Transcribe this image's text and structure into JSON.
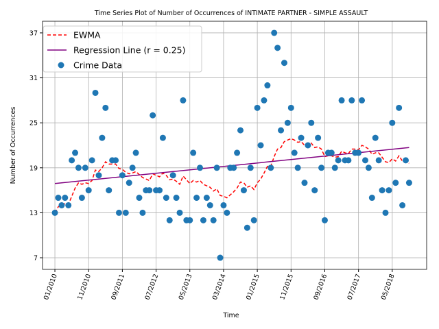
{
  "chart_data": {
    "type": "line",
    "title": "Time Series Plot of Number of Occurrences of INTIMATE PARTNER - SIMPLE ASSAULT",
    "xlabel": "Time",
    "ylabel": "Number of Occurrences",
    "x": [
      "2010-01",
      "2010-02",
      "2010-03",
      "2010-04",
      "2010-05",
      "2010-06",
      "2010-07",
      "2010-08",
      "2010-09",
      "2010-10",
      "2010-11",
      "2010-12",
      "2011-01",
      "2011-02",
      "2011-03",
      "2011-04",
      "2011-05",
      "2011-06",
      "2011-07",
      "2011-08",
      "2011-09",
      "2011-10",
      "2011-11",
      "2011-12",
      "2012-01",
      "2012-02",
      "2012-03",
      "2012-04",
      "2012-05",
      "2012-06",
      "2012-07",
      "2012-08",
      "2012-09",
      "2012-10",
      "2012-11",
      "2012-12",
      "2013-01",
      "2013-02",
      "2013-03",
      "2013-04",
      "2013-05",
      "2013-06",
      "2013-07",
      "2013-08",
      "2013-09",
      "2013-10",
      "2013-11",
      "2013-12",
      "2014-01",
      "2014-02",
      "2014-03",
      "2014-04",
      "2014-05",
      "2014-06",
      "2014-07",
      "2014-08",
      "2014-09",
      "2014-10",
      "2014-11",
      "2014-12",
      "2015-01",
      "2015-02",
      "2015-03",
      "2015-04",
      "2015-05",
      "2015-06",
      "2015-07",
      "2015-08",
      "2015-09",
      "2015-10",
      "2015-11",
      "2015-12",
      "2016-01",
      "2016-02",
      "2016-03",
      "2016-04",
      "2016-05",
      "2016-06",
      "2016-07",
      "2016-08",
      "2016-09",
      "2016-10",
      "2016-11",
      "2016-12",
      "2017-01",
      "2017-02",
      "2017-03",
      "2017-04",
      "2017-05",
      "2017-06",
      "2017-07",
      "2017-08",
      "2017-09",
      "2017-10",
      "2017-11",
      "2017-12",
      "2018-01",
      "2018-02",
      "2018-03",
      "2018-04",
      "2018-05",
      "2018-06",
      "2018-07",
      "2018-08",
      "2018-09",
      "2018-10"
    ],
    "series": [
      {
        "name": "EWMA",
        "type": "line",
        "style": "dashed",
        "color": "#ff0000",
        "values": [
          13,
          13.8,
          14,
          14.2,
          14.1,
          15.2,
          16.3,
          17,
          16.8,
          17,
          16.9,
          17.3,
          18.7,
          18.5,
          19,
          19.8,
          19.5,
          19.5,
          19.5,
          18.9,
          18.8,
          18.4,
          18.2,
          18.3,
          18.5,
          18.1,
          17.7,
          17.5,
          17.3,
          18.2,
          18,
          17.8,
          18.3,
          18,
          17.4,
          17.5,
          17.2,
          16.8,
          17.9,
          17.4,
          16.9,
          17.3,
          17.1,
          17.3,
          16.8,
          16.6,
          16.4,
          15.9,
          16.2,
          15.3,
          15.2,
          15,
          15.4,
          15.8,
          16.3,
          17.1,
          17,
          16.4,
          16.6,
          16.1,
          17,
          17.5,
          18.3,
          19.2,
          19.2,
          20.5,
          21.5,
          21.7,
          22.5,
          22.7,
          22.9,
          22.7,
          22.4,
          22.5,
          22,
          22,
          22.3,
          21.7,
          21.8,
          21.5,
          20.5,
          20.6,
          20.6,
          20.4,
          20.5,
          21.2,
          21,
          20.9,
          21.5,
          21.5,
          21.4,
          22,
          21.8,
          21.5,
          20.8,
          21,
          21,
          20.4,
          19.8,
          19.7,
          20.2,
          19.9,
          20.6,
          19.9,
          19.9,
          19.6
        ]
      },
      {
        "name": "Regression Line (r = 0.25)",
        "type": "line",
        "style": "solid",
        "color": "#800080",
        "x": [
          "2010-01",
          "2018-10"
        ],
        "values": [
          16.9,
          21.7
        ]
      },
      {
        "name": "Crime Data",
        "type": "scatter",
        "color": "#1f77b4",
        "values": [
          13,
          15,
          14,
          15,
          14,
          20,
          21,
          19,
          15,
          19,
          16,
          20,
          29,
          18,
          23,
          27,
          16,
          20,
          20,
          13,
          18,
          13,
          17,
          19,
          21,
          15,
          13,
          16,
          16,
          26,
          16,
          16,
          23,
          15,
          12,
          18,
          15,
          13,
          28,
          12,
          12,
          21,
          15,
          19,
          12,
          15,
          14,
          12,
          19,
          7,
          14,
          13,
          19,
          19,
          21,
          24,
          16,
          11,
          19,
          12,
          27,
          22,
          28,
          30,
          19,
          37,
          35,
          24,
          33,
          25,
          27,
          21,
          19,
          23,
          17,
          22,
          25,
          16,
          23,
          19,
          12,
          21,
          21,
          19,
          20,
          28,
          20,
          20,
          28,
          21,
          21,
          28,
          20,
          19,
          15,
          23,
          20,
          16,
          13,
          16,
          25,
          17,
          27,
          14,
          20,
          17
        ]
      }
    ],
    "xlim": [
      "2009-09-11",
      "2019-03-07"
    ],
    "xticks": [
      {
        "value": "2010-01",
        "label": "01/2010"
      },
      {
        "value": "2010-11",
        "label": "11/2010"
      },
      {
        "value": "2011-09",
        "label": "09/2011"
      },
      {
        "value": "2012-07",
        "label": "07/2012"
      },
      {
        "value": "2013-05",
        "label": "05/2013"
      },
      {
        "value": "2014-03",
        "label": "03/2014"
      },
      {
        "value": "2015-01",
        "label": "01/2015"
      },
      {
        "value": "2015-11",
        "label": "11/2015"
      },
      {
        "value": "2016-09",
        "label": "09/2016"
      },
      {
        "value": "2017-07",
        "label": "07/2017"
      },
      {
        "value": "2018-05",
        "label": "05/2018"
      }
    ],
    "ylim": [
      5.45,
      38.55
    ],
    "yticks": [
      7,
      13,
      19,
      25,
      31,
      37
    ],
    "grid": true,
    "legend": "upper left"
  }
}
